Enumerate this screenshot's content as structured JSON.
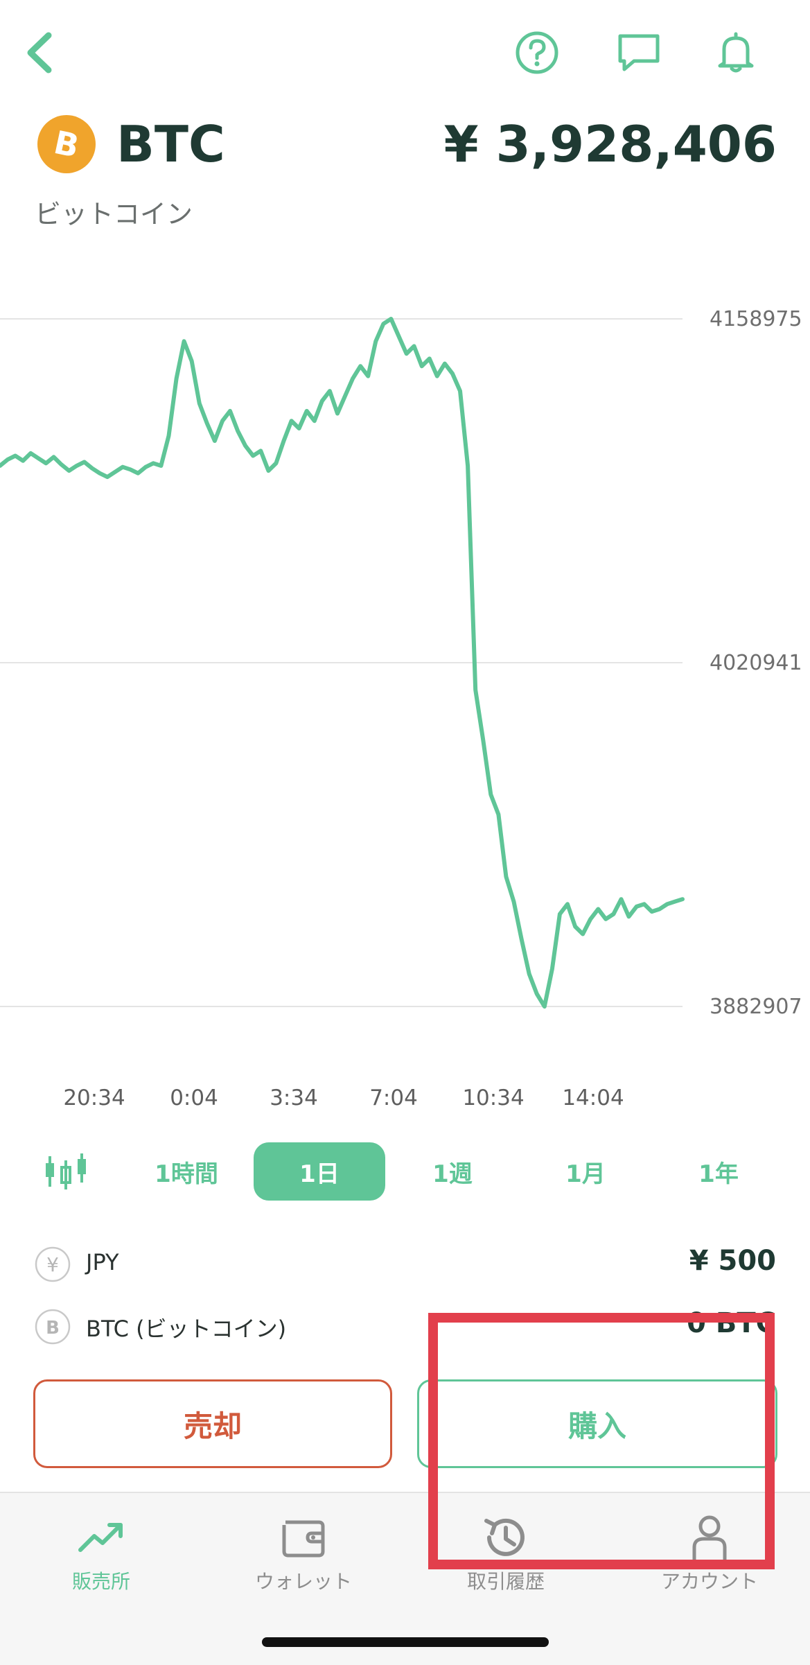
{
  "header": {
    "back_icon": "chevron-left-icon",
    "help_icon": "question-circle-icon",
    "chat_icon": "chat-bubble-icon",
    "bell_icon": "bell-icon",
    "accent_color": "#5fc597"
  },
  "coin": {
    "symbol": "BTC",
    "name": "ビットコイン",
    "price": "¥ 3,928,406",
    "logo_color": "#f0a42c"
  },
  "chart_data": {
    "type": "line",
    "title": "",
    "xlabel": "",
    "ylabel": "",
    "line_color": "#5fc597",
    "ylim": [
      3882907,
      4158975
    ],
    "y_ticks": [
      "4158975",
      "4020941",
      "3882907"
    ],
    "x_ticks": [
      "20:34",
      "0:04",
      "3:34",
      "7:04",
      "10:34",
      "14:04"
    ],
    "grid": true,
    "series": [
      {
        "values": [
          4100000,
          4102500,
          4104000,
          4102000,
          4105000,
          4103000,
          4101000,
          4103500,
          4100500,
          4098000,
          4100000,
          4101500,
          4099000,
          4097000,
          4095500,
          4097500,
          4099500,
          4098500,
          4097000,
          4099500,
          4101000,
          4100000,
          4112000,
          4135000,
          4150000,
          4142000,
          4125000,
          4117000,
          4110000,
          4118000,
          4122000,
          4114000,
          4108000,
          4104000,
          4106000,
          4098000,
          4101000,
          4110000,
          4118000,
          4115000,
          4122000,
          4118000,
          4126000,
          4130000,
          4121000,
          4128000,
          4135000,
          4140000,
          4136000,
          4150000,
          4157000,
          4158975,
          4152000,
          4145000,
          4148000,
          4140000,
          4143000,
          4136000,
          4141000,
          4137000,
          4130000,
          4100000,
          4010000,
          3990000,
          3968000,
          3960000,
          3935000,
          3925000,
          3910000,
          3896000,
          3888000,
          3882907,
          3898000,
          3920000,
          3924000,
          3915000,
          3912000,
          3918000,
          3922000,
          3918000,
          3920000,
          3926000,
          3919000,
          3923000,
          3924000,
          3921000,
          3922000,
          3924000,
          3925000,
          3926000
        ]
      }
    ]
  },
  "range": {
    "candle_icon": "candlestick-icon",
    "tabs": [
      "1時間",
      "1日",
      "1週",
      "1月",
      "1年"
    ],
    "active": "1日"
  },
  "balances": [
    {
      "icon": "yen-coin-icon",
      "label": "JPY",
      "value": "¥ 500"
    },
    {
      "icon": "bitcoin-coin-icon",
      "label": "BTC (ビットコイン)",
      "value": "0 BTC"
    }
  ],
  "actions": {
    "sell_label": "売却",
    "buy_label": "購入",
    "sell_color": "#d15a3c",
    "buy_color": "#5fc597"
  },
  "tabbar": {
    "tabs": [
      {
        "label": "販売所",
        "icon": "trending-up-icon",
        "active": true
      },
      {
        "label": "ウォレット",
        "icon": "wallet-icon",
        "active": false
      },
      {
        "label": "取引履歴",
        "icon": "history-icon",
        "active": false
      },
      {
        "label": "アカウント",
        "icon": "person-icon",
        "active": false
      }
    ]
  },
  "overlay": {
    "highlight_color": "#e23f4c"
  }
}
